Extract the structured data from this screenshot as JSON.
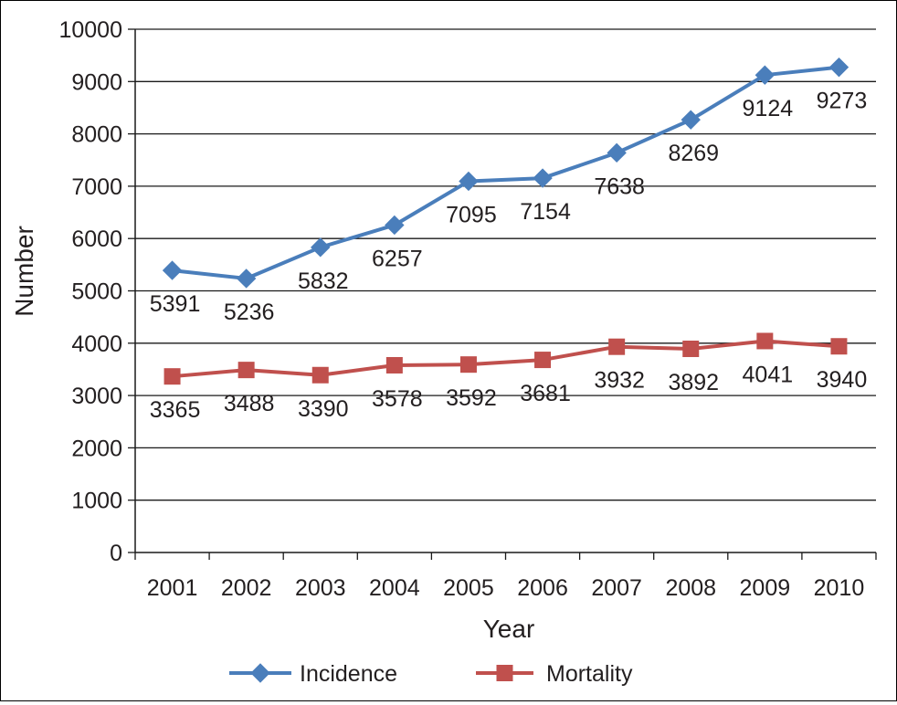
{
  "chart_data": {
    "type": "line",
    "title": "",
    "xlabel": "Year",
    "ylabel": "Number",
    "ylim": [
      0,
      10000
    ],
    "yticks": [
      "0",
      "1000",
      "2000",
      "3000",
      "4000",
      "5000",
      "6000",
      "7000",
      "8000",
      "9000",
      "10000"
    ],
    "categories": [
      "2001",
      "2002",
      "2003",
      "2004",
      "2005",
      "2006",
      "2007",
      "2008",
      "2009",
      "2010"
    ],
    "grid": "horizontal",
    "legend_position": "bottom",
    "series": [
      {
        "name": "Incidence",
        "color": "#4a7ebb",
        "marker": "diamond",
        "values": [
          5391,
          5236,
          5832,
          6257,
          7095,
          7154,
          7638,
          8269,
          9124,
          9273
        ]
      },
      {
        "name": "Mortality",
        "color": "#c0504d",
        "marker": "square",
        "values": [
          3365,
          3488,
          3390,
          3578,
          3592,
          3681,
          3932,
          3892,
          4041,
          3940
        ]
      }
    ]
  }
}
